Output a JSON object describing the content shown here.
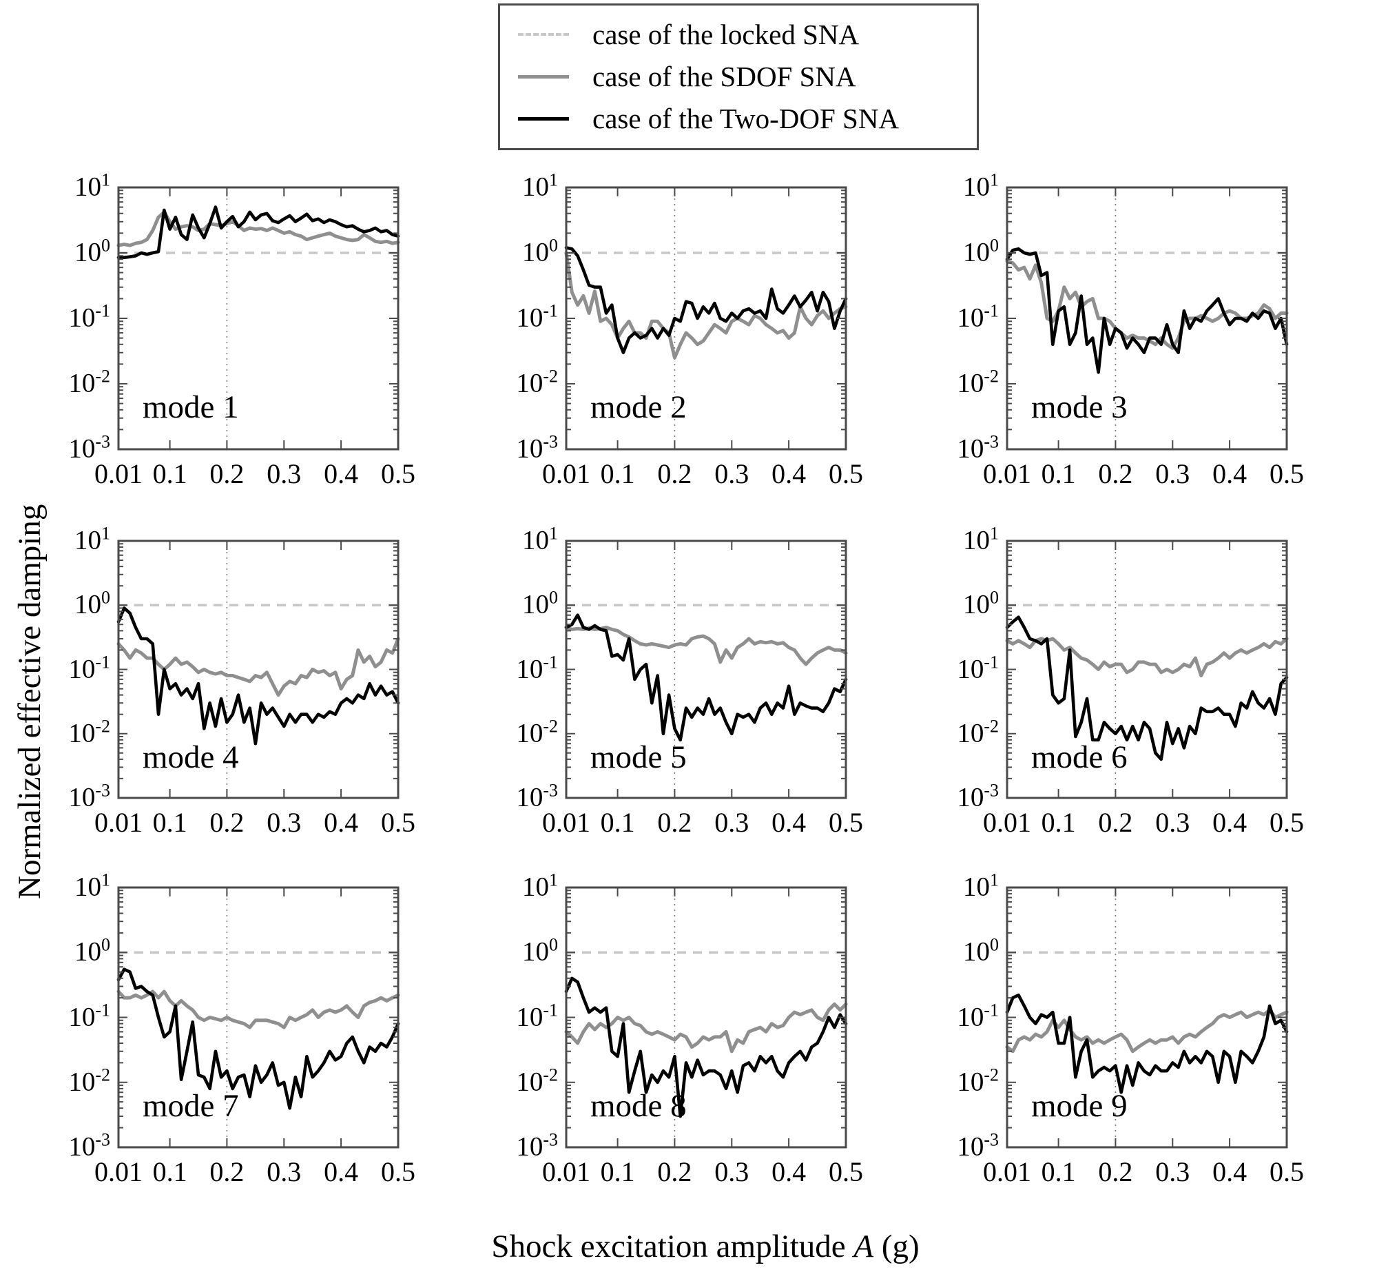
{
  "figure": {
    "ylabel": "Normalized effective damping",
    "xlabel_prefix": "Shock excitation amplitude ",
    "xlabel_var": "A",
    "xlabel_suffix": " (g)"
  },
  "legend": {
    "items": [
      {
        "label": "case of the locked SNA",
        "style": "dashed-light"
      },
      {
        "label": "case of the SDOF SNA",
        "style": "solid-gray"
      },
      {
        "label": "case of the Two-DOF SNA",
        "style": "solid-black"
      }
    ]
  },
  "colors": {
    "locked": "#c8c8c8",
    "sdof": "#8f8f8f",
    "twodof": "#000000",
    "frame": "#4a4a4a",
    "vline": "#787878"
  },
  "chart_data": {
    "type": "line",
    "title": "",
    "xlabel": "Shock excitation amplitude A (g)",
    "ylabel": "Normalized effective damping",
    "yscale": "log",
    "xlim": [
      0.01,
      0.5
    ],
    "ylim": [
      0.001,
      10
    ],
    "ylog_lim": [
      -3,
      1
    ],
    "grid": "vertical dotted line at x=0.2 only",
    "legend_position": "top-center outside",
    "ref_line_y": 1,
    "vline_x": 0.2,
    "xticks": [
      0.01,
      0.1,
      0.2,
      0.3,
      0.4,
      0.5
    ],
    "xtick_labels": [
      "0.01",
      "0.1",
      "0.2",
      "0.3",
      "0.4",
      "0.5"
    ],
    "y_decades": [
      1,
      0,
      -1,
      -2,
      -3
    ],
    "ytick_labels": [
      {
        "base": "10",
        "exp": "1"
      },
      {
        "base": "10",
        "exp": "0"
      },
      {
        "base": "10",
        "exp": "-1"
      },
      {
        "base": "10",
        "exp": "-2"
      },
      {
        "base": "10",
        "exp": "-3"
      }
    ],
    "x": [
      0.01,
      0.02,
      0.03,
      0.04,
      0.05,
      0.06,
      0.07,
      0.08,
      0.09,
      0.1,
      0.11,
      0.12,
      0.13,
      0.14,
      0.15,
      0.16,
      0.17,
      0.18,
      0.19,
      0.2,
      0.21,
      0.22,
      0.23,
      0.24,
      0.25,
      0.26,
      0.27,
      0.28,
      0.29,
      0.3,
      0.31,
      0.32,
      0.33,
      0.34,
      0.35,
      0.36,
      0.37,
      0.38,
      0.39,
      0.4,
      0.41,
      0.42,
      0.43,
      0.44,
      0.45,
      0.46,
      0.47,
      0.48,
      0.49,
      0.5
    ],
    "series_names": [
      "case of the locked SNA",
      "case of the SDOF SNA",
      "case of the Two-DOF SNA"
    ],
    "panels": [
      {
        "mode": "mode 1",
        "locked_constant": 1,
        "sdof": [
          1.3,
          1.35,
          1.3,
          1.4,
          1.45,
          1.6,
          2.2,
          3.5,
          4.2,
          3.0,
          2.3,
          2.5,
          2.6,
          2.5,
          2.2,
          2.3,
          2.8,
          2.7,
          2.6,
          2.8,
          3.0,
          2.6,
          2.2,
          2.4,
          2.3,
          2.35,
          2.2,
          2.4,
          2.2,
          2.0,
          2.1,
          1.9,
          1.8,
          1.6,
          1.7,
          1.8,
          1.9,
          2.0,
          1.8,
          1.7,
          1.6,
          1.55,
          1.6,
          1.9,
          1.7,
          1.5,
          1.45,
          1.5,
          1.4,
          1.45
        ],
        "twodof": [
          0.85,
          0.85,
          0.87,
          0.9,
          1.0,
          0.95,
          1.0,
          1.05,
          4.5,
          2.3,
          3.5,
          1.9,
          1.6,
          3.8,
          2.4,
          1.7,
          2.8,
          5.0,
          2.4,
          3.0,
          3.6,
          2.5,
          3.0,
          4.2,
          3.2,
          3.8,
          4.0,
          3.1,
          2.9,
          3.3,
          3.7,
          3.0,
          3.4,
          3.9,
          3.1,
          3.3,
          2.9,
          3.2,
          3.0,
          2.7,
          2.5,
          2.6,
          2.3,
          2.1,
          2.2,
          2.4,
          2.1,
          2.2,
          1.9,
          1.8
        ]
      },
      {
        "mode": "mode 2",
        "locked_constant": 1,
        "sdof": [
          1.0,
          0.25,
          0.16,
          0.22,
          0.12,
          0.26,
          0.09,
          0.1,
          0.08,
          0.05,
          0.07,
          0.09,
          0.06,
          0.06,
          0.05,
          0.09,
          0.09,
          0.07,
          0.06,
          0.025,
          0.04,
          0.06,
          0.05,
          0.04,
          0.045,
          0.06,
          0.08,
          0.07,
          0.06,
          0.09,
          0.1,
          0.09,
          0.08,
          0.11,
          0.1,
          0.08,
          0.07,
          0.06,
          0.065,
          0.05,
          0.06,
          0.15,
          0.1,
          0.08,
          0.11,
          0.13,
          0.1,
          0.12,
          0.14,
          0.15
        ],
        "twodof": [
          1.2,
          1.15,
          0.9,
          0.55,
          0.32,
          0.3,
          0.3,
          0.12,
          0.16,
          0.05,
          0.03,
          0.05,
          0.06,
          0.05,
          0.055,
          0.07,
          0.05,
          0.07,
          0.055,
          0.1,
          0.09,
          0.18,
          0.17,
          0.1,
          0.15,
          0.12,
          0.17,
          0.1,
          0.09,
          0.12,
          0.1,
          0.13,
          0.14,
          0.12,
          0.13,
          0.1,
          0.28,
          0.14,
          0.12,
          0.16,
          0.22,
          0.15,
          0.19,
          0.25,
          0.13,
          0.25,
          0.18,
          0.07,
          0.13,
          0.2
        ]
      },
      {
        "mode": "mode 3",
        "locked_constant": 1,
        "sdof": [
          0.75,
          0.7,
          0.55,
          0.6,
          0.4,
          0.65,
          0.35,
          0.1,
          0.09,
          0.13,
          0.3,
          0.2,
          0.25,
          0.15,
          0.18,
          0.2,
          0.1,
          0.1,
          0.09,
          0.07,
          0.06,
          0.05,
          0.055,
          0.05,
          0.05,
          0.045,
          0.04,
          0.05,
          0.04,
          0.035,
          0.05,
          0.09,
          0.1,
          0.1,
          0.11,
          0.1,
          0.09,
          0.1,
          0.12,
          0.13,
          0.12,
          0.1,
          0.1,
          0.11,
          0.12,
          0.16,
          0.14,
          0.1,
          0.12,
          0.12
        ],
        "twodof": [
          0.8,
          1.1,
          1.15,
          1.0,
          0.95,
          1.0,
          0.45,
          0.5,
          0.04,
          0.13,
          0.15,
          0.04,
          0.06,
          0.22,
          0.04,
          0.05,
          0.015,
          0.1,
          0.04,
          0.07,
          0.06,
          0.035,
          0.05,
          0.04,
          0.03,
          0.05,
          0.05,
          0.04,
          0.08,
          0.04,
          0.03,
          0.13,
          0.07,
          0.1,
          0.09,
          0.13,
          0.16,
          0.2,
          0.12,
          0.08,
          0.1,
          0.1,
          0.09,
          0.12,
          0.1,
          0.13,
          0.12,
          0.07,
          0.1,
          0.04
        ]
      },
      {
        "mode": "mode 4",
        "locked_constant": 1,
        "sdof": [
          0.25,
          0.2,
          0.15,
          0.2,
          0.18,
          0.15,
          0.15,
          0.12,
          0.1,
          0.12,
          0.15,
          0.12,
          0.13,
          0.11,
          0.09,
          0.1,
          0.09,
          0.085,
          0.09,
          0.08,
          0.08,
          0.075,
          0.07,
          0.065,
          0.08,
          0.075,
          0.09,
          0.06,
          0.04,
          0.055,
          0.065,
          0.06,
          0.08,
          0.075,
          0.1,
          0.09,
          0.095,
          0.08,
          0.09,
          0.05,
          0.07,
          0.08,
          0.2,
          0.13,
          0.16,
          0.11,
          0.13,
          0.2,
          0.18,
          0.3
        ],
        "twodof": [
          0.55,
          0.9,
          0.75,
          0.45,
          0.3,
          0.3,
          0.25,
          0.02,
          0.1,
          0.05,
          0.06,
          0.04,
          0.05,
          0.035,
          0.06,
          0.012,
          0.03,
          0.013,
          0.035,
          0.015,
          0.02,
          0.04,
          0.015,
          0.025,
          0.007,
          0.03,
          0.02,
          0.025,
          0.018,
          0.013,
          0.02,
          0.015,
          0.02,
          0.02,
          0.015,
          0.02,
          0.018,
          0.022,
          0.02,
          0.03,
          0.035,
          0.03,
          0.04,
          0.035,
          0.06,
          0.04,
          0.055,
          0.04,
          0.045,
          0.03
        ]
      },
      {
        "mode": "mode 5",
        "locked_constant": 1,
        "sdof": [
          0.45,
          0.42,
          0.43,
          0.42,
          0.44,
          0.42,
          0.43,
          0.45,
          0.42,
          0.4,
          0.35,
          0.32,
          0.28,
          0.25,
          0.24,
          0.25,
          0.24,
          0.23,
          0.22,
          0.24,
          0.25,
          0.24,
          0.3,
          0.32,
          0.33,
          0.3,
          0.25,
          0.13,
          0.2,
          0.15,
          0.22,
          0.25,
          0.3,
          0.25,
          0.27,
          0.26,
          0.27,
          0.25,
          0.26,
          0.22,
          0.2,
          0.15,
          0.12,
          0.15,
          0.18,
          0.2,
          0.22,
          0.2,
          0.2,
          0.18
        ],
        "twodof": [
          0.45,
          0.5,
          0.7,
          0.45,
          0.42,
          0.48,
          0.42,
          0.4,
          0.16,
          0.17,
          0.14,
          0.3,
          0.07,
          0.1,
          0.12,
          0.03,
          0.08,
          0.01,
          0.04,
          0.012,
          0.008,
          0.025,
          0.018,
          0.025,
          0.02,
          0.035,
          0.02,
          0.025,
          0.015,
          0.01,
          0.02,
          0.018,
          0.02,
          0.015,
          0.025,
          0.03,
          0.02,
          0.03,
          0.025,
          0.055,
          0.02,
          0.03,
          0.027,
          0.025,
          0.025,
          0.022,
          0.03,
          0.05,
          0.045,
          0.07
        ]
      },
      {
        "mode": "mode 6",
        "locked_constant": 1,
        "sdof": [
          0.28,
          0.25,
          0.28,
          0.25,
          0.22,
          0.28,
          0.3,
          0.28,
          0.3,
          0.25,
          0.2,
          0.22,
          0.18,
          0.15,
          0.14,
          0.12,
          0.1,
          0.13,
          0.11,
          0.12,
          0.12,
          0.09,
          0.1,
          0.13,
          0.13,
          0.12,
          0.12,
          0.09,
          0.1,
          0.09,
          0.1,
          0.12,
          0.11,
          0.15,
          0.08,
          0.12,
          0.13,
          0.15,
          0.18,
          0.15,
          0.18,
          0.2,
          0.18,
          0.2,
          0.22,
          0.25,
          0.22,
          0.27,
          0.25,
          0.3
        ],
        "twodof": [
          0.45,
          0.55,
          0.65,
          0.45,
          0.3,
          0.28,
          0.25,
          0.3,
          0.04,
          0.03,
          0.035,
          0.2,
          0.009,
          0.015,
          0.035,
          0.008,
          0.008,
          0.015,
          0.012,
          0.01,
          0.013,
          0.008,
          0.013,
          0.008,
          0.015,
          0.012,
          0.005,
          0.004,
          0.015,
          0.007,
          0.012,
          0.006,
          0.013,
          0.01,
          0.025,
          0.022,
          0.022,
          0.025,
          0.02,
          0.02,
          0.013,
          0.03,
          0.025,
          0.045,
          0.03,
          0.025,
          0.035,
          0.02,
          0.06,
          0.075
        ]
      },
      {
        "mode": "mode 7",
        "locked_constant": 1,
        "sdof": [
          0.25,
          0.2,
          0.2,
          0.22,
          0.2,
          0.22,
          0.25,
          0.2,
          0.25,
          0.18,
          0.15,
          0.18,
          0.15,
          0.13,
          0.1,
          0.09,
          0.1,
          0.095,
          0.09,
          0.1,
          0.09,
          0.085,
          0.08,
          0.07,
          0.09,
          0.09,
          0.09,
          0.085,
          0.08,
          0.07,
          0.1,
          0.09,
          0.1,
          0.11,
          0.13,
          0.1,
          0.12,
          0.13,
          0.12,
          0.13,
          0.15,
          0.12,
          0.1,
          0.15,
          0.17,
          0.18,
          0.2,
          0.18,
          0.2,
          0.22
        ],
        "twodof": [
          0.38,
          0.55,
          0.5,
          0.28,
          0.3,
          0.25,
          0.22,
          0.1,
          0.05,
          0.06,
          0.15,
          0.011,
          0.03,
          0.085,
          0.013,
          0.012,
          0.008,
          0.03,
          0.012,
          0.015,
          0.008,
          0.012,
          0.013,
          0.006,
          0.018,
          0.01,
          0.013,
          0.02,
          0.009,
          0.01,
          0.004,
          0.012,
          0.006,
          0.025,
          0.012,
          0.015,
          0.02,
          0.03,
          0.022,
          0.025,
          0.04,
          0.05,
          0.03,
          0.02,
          0.035,
          0.03,
          0.04,
          0.035,
          0.05,
          0.08
        ]
      },
      {
        "mode": "mode 8",
        "locked_constant": 1,
        "sdof": [
          0.06,
          0.05,
          0.04,
          0.06,
          0.08,
          0.065,
          0.08,
          0.07,
          0.08,
          0.1,
          0.09,
          0.1,
          0.08,
          0.075,
          0.06,
          0.055,
          0.06,
          0.055,
          0.05,
          0.045,
          0.055,
          0.05,
          0.035,
          0.04,
          0.05,
          0.045,
          0.05,
          0.05,
          0.06,
          0.03,
          0.045,
          0.04,
          0.06,
          0.065,
          0.07,
          0.06,
          0.08,
          0.07,
          0.075,
          0.1,
          0.12,
          0.11,
          0.12,
          0.13,
          0.1,
          0.09,
          0.13,
          0.16,
          0.13,
          0.16
        ],
        "twodof": [
          0.25,
          0.4,
          0.35,
          0.2,
          0.12,
          0.14,
          0.12,
          0.14,
          0.03,
          0.025,
          0.08,
          0.007,
          0.015,
          0.03,
          0.007,
          0.013,
          0.01,
          0.015,
          0.012,
          0.025,
          0.003,
          0.02,
          0.012,
          0.022,
          0.013,
          0.015,
          0.015,
          0.013,
          0.008,
          0.015,
          0.007,
          0.018,
          0.02,
          0.015,
          0.025,
          0.02,
          0.025,
          0.015,
          0.012,
          0.02,
          0.025,
          0.03,
          0.022,
          0.035,
          0.04,
          0.06,
          0.1,
          0.07,
          0.11,
          0.08
        ]
      },
      {
        "mode": "mode 9",
        "locked_constant": 1,
        "sdof": [
          0.035,
          0.03,
          0.045,
          0.05,
          0.045,
          0.055,
          0.05,
          0.06,
          0.09,
          0.07,
          0.09,
          0.065,
          0.05,
          0.045,
          0.05,
          0.04,
          0.045,
          0.04,
          0.045,
          0.05,
          0.055,
          0.045,
          0.03,
          0.035,
          0.04,
          0.045,
          0.04,
          0.045,
          0.045,
          0.05,
          0.04,
          0.05,
          0.055,
          0.05,
          0.06,
          0.07,
          0.08,
          0.1,
          0.11,
          0.1,
          0.11,
          0.12,
          0.1,
          0.11,
          0.12,
          0.11,
          0.13,
          0.1,
          0.11,
          0.12
        ],
        "twodof": [
          0.12,
          0.2,
          0.22,
          0.15,
          0.1,
          0.08,
          0.11,
          0.1,
          0.12,
          0.04,
          0.04,
          0.1,
          0.012,
          0.03,
          0.045,
          0.012,
          0.015,
          0.017,
          0.015,
          0.018,
          0.007,
          0.018,
          0.009,
          0.02,
          0.015,
          0.013,
          0.018,
          0.015,
          0.015,
          0.02,
          0.017,
          0.03,
          0.02,
          0.025,
          0.02,
          0.03,
          0.025,
          0.01,
          0.03,
          0.025,
          0.01,
          0.03,
          0.025,
          0.02,
          0.03,
          0.05,
          0.15,
          0.08,
          0.09,
          0.06
        ]
      }
    ]
  }
}
